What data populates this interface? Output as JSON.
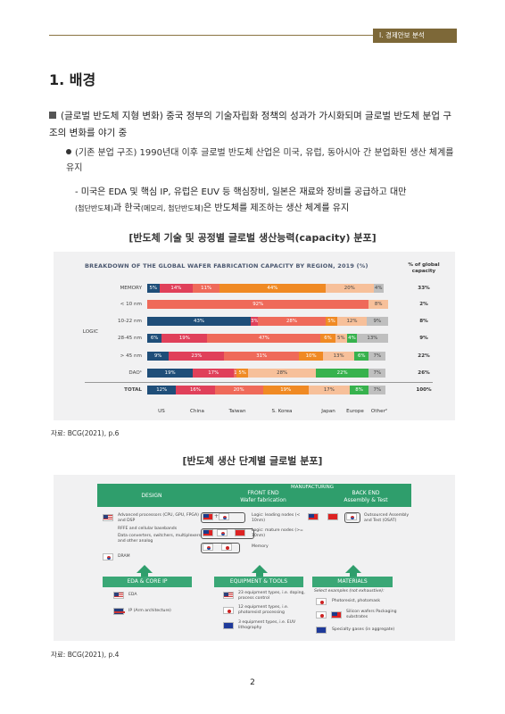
{
  "header": {
    "tag": "Ⅰ. 경제안보 분석"
  },
  "section": {
    "title": "1. 배경"
  },
  "para1": "(글로벌 반도체 지형 변화) 중국 정부의 기술자립화 정책의 성과가 가시화되며 글로벌 반도체 분업 구조의 변화를 야기 중",
  "para2": "(기존 분업 구조) 1990년대 이후 글로벌 반도체 산업은 미국, 유럽, 동아시아 간 분업화된 생산 체계를 유지",
  "para3": {
    "a": "- 미국은 EDA 및 핵심 IP, 유럽은 EUV 등 핵심장비, 일본은 재료와 장비를 공급하고 대만",
    "b": "(첨단반도체)",
    "c": "과 한국",
    "d": "(메모리, 첨단반도체)",
    "e": "은 반도체를 제조하는 생산 체계를 유지"
  },
  "fig1": {
    "caption": "[반도체 기술 및 공정별 글로벌 생산능력(capacity) 분포]",
    "source": "자료: BCG(2021), p.6"
  },
  "fig2": {
    "caption": "[반도체 생산 단계별 글로벌 분포]",
    "source": "자료: BCG(2021), p.4"
  },
  "page_number": "2",
  "chart_data": {
    "type": "bar",
    "title": "BREAKDOWN OF THE GLOBAL WAFER FABRICATION CAPACITY BY REGION, 2019 (%)",
    "pct_header": "% of global capacity",
    "group_label": "LOGIC",
    "categories": [
      "MEMORY",
      "< 10 nm",
      "10-22 nm",
      "28-45 nm",
      "> 45 nm",
      "DAO¹",
      "TOTAL"
    ],
    "x_labels": [
      "US",
      "China",
      "Taiwan",
      "S. Korea",
      "Japan",
      "Europe",
      "Other²"
    ],
    "colors": [
      "#1f4e79",
      "#e0405a",
      "#ef6a5a",
      "#f08a24",
      "#f7c09a",
      "#37b24d",
      "#bfbfbf"
    ],
    "series": [
      {
        "name": "US",
        "values": [
          5,
          0,
          43,
          6,
          9,
          19,
          12
        ]
      },
      {
        "name": "China",
        "values": [
          14,
          0,
          3,
          19,
          23,
          17,
          16
        ]
      },
      {
        "name": "Taiwan",
        "values": [
          11,
          92,
          28,
          47,
          31,
          1,
          20
        ]
      },
      {
        "name": "S. Korea",
        "values": [
          44,
          0,
          5,
          6,
          10,
          5,
          19
        ]
      },
      {
        "name": "Japan",
        "values": [
          20,
          8,
          12,
          5,
          13,
          28,
          17
        ]
      },
      {
        "name": "Europe",
        "values": [
          0,
          0,
          0,
          4,
          6,
          22,
          8
        ]
      },
      {
        "name": "Other²",
        "values": [
          4,
          0,
          9,
          13,
          7,
          7,
          7
        ]
      }
    ],
    "global_capacity": [
      "33%",
      "2%",
      "8%",
      "9%",
      "22%",
      "26%",
      "100%"
    ]
  },
  "diagram": {
    "manufacturing": "MANUFACTURING",
    "design": "DESIGN",
    "front_end": "FRONT END",
    "front_end_sub": "Wafer fabrication",
    "back_end": "BACK END",
    "back_end_sub": "Assembly & Test",
    "design_items": [
      "Advanced processors (CPU, GPU, FPGA) and DSP",
      "RFFE and cellular basebands",
      "Data converters, switchers, multiplexers and other analog",
      "DRAM"
    ],
    "front_items": [
      "Logic: leading nodes (< 10nm)",
      "Logic: mature nodes (>= 10nm)",
      "Memory"
    ],
    "back_items": [
      "Outsourced Assembly and Test (OSAT)"
    ],
    "eda": "EDA & CORE IP",
    "eda_items": [
      "EDA",
      "IP (Arm architecture)"
    ],
    "equip": "EQUIPMENT & TOOLS",
    "equip_items": [
      "23 equipment types, i.e. doping, process control",
      "12 equipment types, i.e. photoresist processing",
      "3 equipment types, i.e. EUV lithography"
    ],
    "materials": "MATERIALS",
    "materials_sub": "Select examples (not exhaustive):",
    "materials_items": [
      "Photoresist, photomask",
      "Silicon wafers Packaging substrates",
      "Specialty gases (in aggregate)"
    ]
  }
}
